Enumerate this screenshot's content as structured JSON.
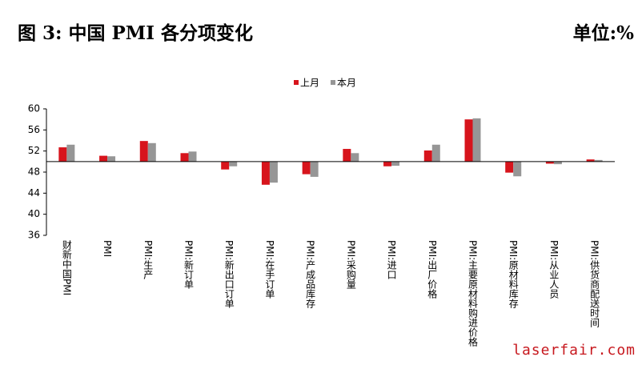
{
  "chart_data": {
    "type": "bar",
    "title": "图 3: 中国 PMI 各分项变化",
    "unit": "单位:%",
    "categories": [
      "财新中国PMI",
      "PMI",
      "PMI:生产",
      "PMI:新订单",
      "PMI:新出口订单",
      "PMI:在手订单",
      "PMI:产成品库存",
      "PMI:采购量",
      "PMI:进口",
      "PMI:出厂价格",
      "PMI:主要原材料购进价格",
      "PMI:原材料库存",
      "PMI:从业人员",
      "PMI:供货商配送时间"
    ],
    "series": [
      {
        "name": "上月",
        "color": "#d7141c",
        "values": [
          52.7,
          51.1,
          53.9,
          51.6,
          48.5,
          45.6,
          47.6,
          52.4,
          49.1,
          52.1,
          58.0,
          47.9,
          49.6,
          50.4
        ]
      },
      {
        "name": "本月",
        "color": "#969696",
        "values": [
          53.2,
          51.0,
          53.5,
          51.9,
          49.1,
          46.0,
          47.1,
          51.6,
          49.2,
          53.2,
          58.2,
          47.2,
          49.5,
          50.3
        ]
      }
    ],
    "ylim": [
      36,
      60
    ],
    "yticks": [
      36,
      40,
      44,
      48,
      52,
      56,
      60
    ],
    "x_axis_crosses": 50,
    "legend": "top",
    "watermark": "laserfair.com"
  }
}
